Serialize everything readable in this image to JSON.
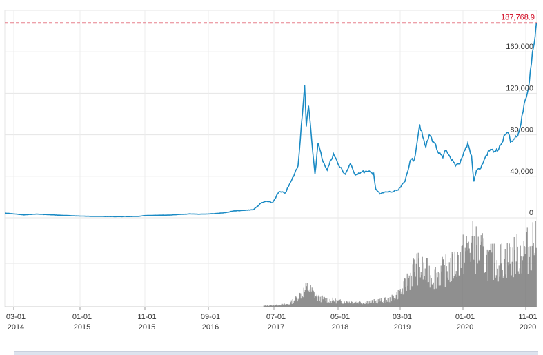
{
  "chart_data": {
    "type": "line",
    "title": "",
    "xlabel": "",
    "ylabel": "",
    "x_tick_labels": [
      {
        "month": "03-01",
        "year": "2014"
      },
      {
        "month": "01-01",
        "year": "2015"
      },
      {
        "month": "11-01",
        "year": "2015"
      },
      {
        "month": "09-01",
        "year": "2016"
      },
      {
        "month": "07-01",
        "year": "2017"
      },
      {
        "month": "05-01",
        "year": "2018"
      },
      {
        "month": "03-01",
        "year": "2019"
      },
      {
        "month": "01-01",
        "year": "2020"
      },
      {
        "month": "11-01",
        "year": "2020"
      }
    ],
    "y_tick_labels": [
      "0",
      "40,000",
      "80,000",
      "120,000",
      "160,000"
    ],
    "ylim": [
      0,
      200000
    ],
    "xlim": [
      "2014-01-01",
      "2021-01-10"
    ],
    "grid": true,
    "max_line": {
      "label": "187,768.9",
      "value": 187768.9,
      "color": "#d0021b"
    },
    "line_color": "#1a8ac4",
    "volume_color": "#808080",
    "series": [
      {
        "values": [
          [
            "2014-01-01",
            4500
          ],
          [
            "2014-02-15",
            3800
          ],
          [
            "2014-04-01",
            2800
          ],
          [
            "2014-06-01",
            3600
          ],
          [
            "2014-08-01",
            3000
          ],
          [
            "2014-10-01",
            2400
          ],
          [
            "2014-12-01",
            1900
          ],
          [
            "2015-02-01",
            1500
          ],
          [
            "2015-04-01",
            1300
          ],
          [
            "2015-07-01",
            1200
          ],
          [
            "2015-10-01",
            1300
          ],
          [
            "2015-11-10",
            2200
          ],
          [
            "2015-12-15",
            2300
          ],
          [
            "2016-03-01",
            2600
          ],
          [
            "2016-06-15",
            3800
          ],
          [
            "2016-08-01",
            3500
          ],
          [
            "2016-10-01",
            4000
          ],
          [
            "2016-12-01",
            5000
          ],
          [
            "2017-01-05",
            6500
          ],
          [
            "2017-03-01",
            7200
          ],
          [
            "2017-04-15",
            8000
          ],
          [
            "2017-05-20",
            14000
          ],
          [
            "2017-06-15",
            16000
          ],
          [
            "2017-07-15",
            14500
          ],
          [
            "2017-08-15",
            25000
          ],
          [
            "2017-09-15",
            24000
          ],
          [
            "2017-10-15",
            36000
          ],
          [
            "2017-11-15",
            50000
          ],
          [
            "2017-12-17",
            128000
          ],
          [
            "2017-12-25",
            88000
          ],
          [
            "2018-01-05",
            108000
          ],
          [
            "2018-01-20",
            75000
          ],
          [
            "2018-02-05",
            42000
          ],
          [
            "2018-02-20",
            72000
          ],
          [
            "2018-03-10",
            58000
          ],
          [
            "2018-04-05",
            46000
          ],
          [
            "2018-05-05",
            62000
          ],
          [
            "2018-06-01",
            50000
          ],
          [
            "2018-07-01",
            42000
          ],
          [
            "2018-07-25",
            52000
          ],
          [
            "2018-08-15",
            42000
          ],
          [
            "2018-09-15",
            44000
          ],
          [
            "2018-10-15",
            44500
          ],
          [
            "2018-11-15",
            43000
          ],
          [
            "2018-11-25",
            28000
          ],
          [
            "2018-12-15",
            23000
          ],
          [
            "2019-01-15",
            25000
          ],
          [
            "2019-02-15",
            25000
          ],
          [
            "2019-03-15",
            27000
          ],
          [
            "2019-04-15",
            35000
          ],
          [
            "2019-05-10",
            55000
          ],
          [
            "2019-05-30",
            56000
          ],
          [
            "2019-06-25",
            90000
          ],
          [
            "2019-07-10",
            78000
          ],
          [
            "2019-07-25",
            68000
          ],
          [
            "2019-08-10",
            80000
          ],
          [
            "2019-09-05",
            72000
          ],
          [
            "2019-09-25",
            62000
          ],
          [
            "2019-10-15",
            58000
          ],
          [
            "2019-10-28",
            65000
          ],
          [
            "2019-11-15",
            60000
          ],
          [
            "2019-12-15",
            50000
          ],
          [
            "2020-01-05",
            52000
          ],
          [
            "2020-01-20",
            60000
          ],
          [
            "2020-02-12",
            72000
          ],
          [
            "2020-03-01",
            60000
          ],
          [
            "2020-03-12",
            35000
          ],
          [
            "2020-03-25",
            46000
          ],
          [
            "2020-04-15",
            48000
          ],
          [
            "2020-05-10",
            60000
          ],
          [
            "2020-06-01",
            66000
          ],
          [
            "2020-06-20",
            64000
          ],
          [
            "2020-07-10",
            66000
          ],
          [
            "2020-07-25",
            72000
          ],
          [
            "2020-08-10",
            80000
          ],
          [
            "2020-08-25",
            82000
          ],
          [
            "2020-09-05",
            73000
          ],
          [
            "2020-09-25",
            76000
          ],
          [
            "2020-10-10",
            79000
          ],
          [
            "2020-10-25",
            90000
          ],
          [
            "2020-11-10",
            110000
          ],
          [
            "2020-11-25",
            120000
          ],
          [
            "2020-12-05",
            131000
          ],
          [
            "2020-12-20",
            160000
          ],
          [
            "2021-01-02",
            175000
          ],
          [
            "2021-01-08",
            187768.9
          ]
        ]
      }
    ],
    "volume": {
      "description_points": [
        [
          "2017-06-01",
          0.01
        ],
        [
          "2017-10-01",
          0.03
        ],
        [
          "2017-12-01",
          0.15
        ],
        [
          "2018-01-01",
          0.22
        ],
        [
          "2018-02-15",
          0.1
        ],
        [
          "2018-06-01",
          0.06
        ],
        [
          "2018-10-01",
          0.05
        ],
        [
          "2019-02-01",
          0.08
        ],
        [
          "2019-04-01",
          0.18
        ],
        [
          "2019-06-01",
          0.45
        ],
        [
          "2019-09-01",
          0.35
        ],
        [
          "2019-12-01",
          0.45
        ],
        [
          "2020-03-01",
          0.7
        ],
        [
          "2020-06-01",
          0.5
        ],
        [
          "2020-09-01",
          0.55
        ],
        [
          "2020-12-01",
          0.65
        ],
        [
          "2021-01-08",
          0.85
        ]
      ]
    }
  }
}
